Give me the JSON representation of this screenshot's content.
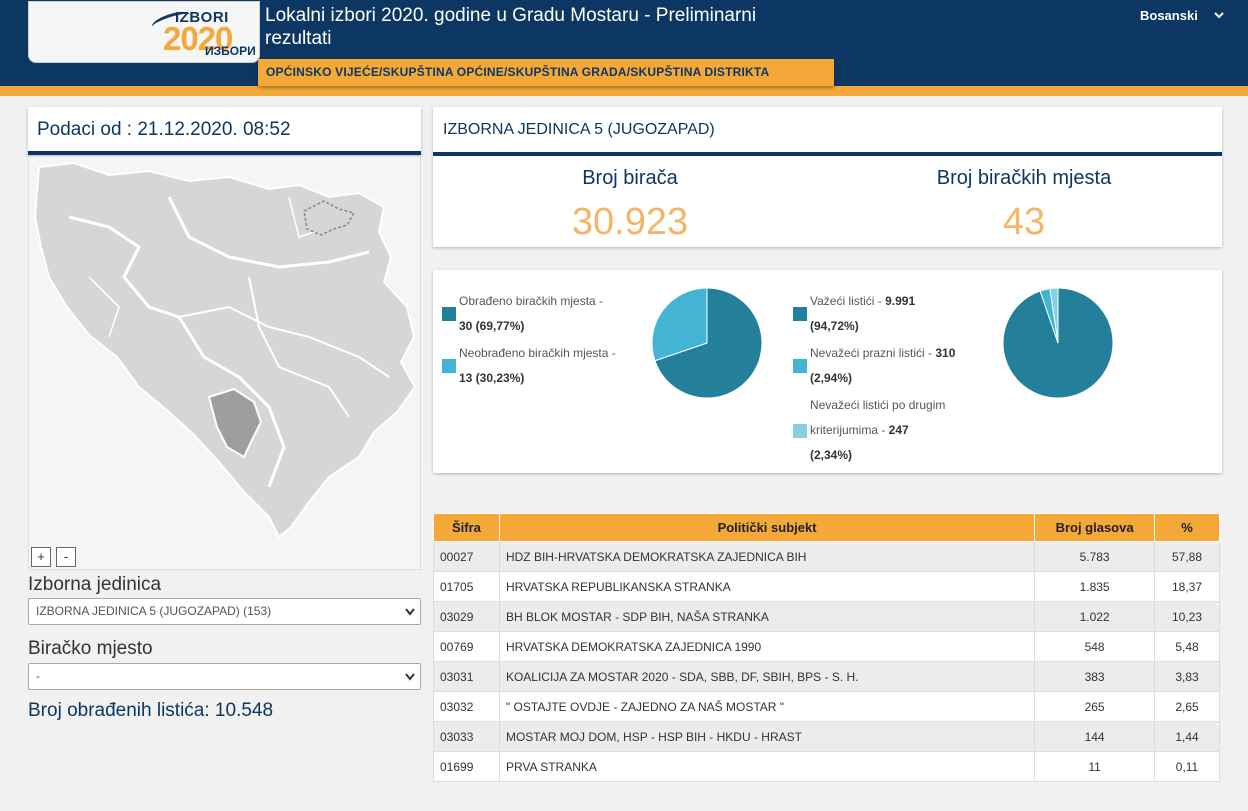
{
  "header": {
    "logo_top": "IZBORI",
    "logo_year": "2020",
    "logo_bottom": "ИЗБОРИ",
    "title": "Lokalni izbori 2020. godine u Gradu Mostaru - Preliminarni rezultati",
    "language": "Bosanski",
    "nav_tab": "OPĆINSKO VIJEĆE/SKUPŠTINA OPĆINE/SKUPŠTINA GRADA/SKUPŠTINA DISTRIKTA"
  },
  "left": {
    "date_label": "Podaci od : 21.12.2020. 08:52",
    "zoom_in": "+",
    "zoom_out": "-",
    "unit_label": "Izborna jedinica",
    "unit_select_value": "IZBORNA JEDINICA 5 (JUGOZAPAD) (153)",
    "station_label": "Biračko mjesto",
    "station_select_value": "-",
    "processed_label": "Broj obrađenih listića: 10.548"
  },
  "unit": {
    "title": "IZBORNA JEDINICA 5 (JUGOZAPAD)",
    "voters_label": "Broj birača",
    "voters_value": "30.923",
    "stations_label": "Broj biračkih mjesta",
    "stations_value": "43"
  },
  "pie1": {
    "legend": [
      {
        "label": "Obrađeno biračkih mjesta -",
        "value": "30 (69,77%)",
        "color": "#247f9b",
        "percent": 69.77
      },
      {
        "label": "Neobrađeno biračkih mjesta -",
        "value": "13 (30,23%)",
        "color": "#44b4d4",
        "percent": 30.23
      }
    ]
  },
  "pie2": {
    "legend": [
      {
        "label": "Važeći listići - ",
        "value": "9.991",
        "pct": "(94,72%)",
        "color": "#247f9b",
        "percent": 94.72
      },
      {
        "label": "Nevažeći prazni listići - ",
        "value": "310",
        "pct": "(2,94%)",
        "color": "#44b4d4",
        "percent": 2.94
      },
      {
        "label": "Nevažeći listići po drugim",
        "label2": "kriterijumima - ",
        "value": "247",
        "pct": "(2,34%)",
        "color": "#86cfe3",
        "percent": 2.34
      }
    ]
  },
  "table": {
    "headers": [
      "Šifra",
      "Politički subjekt",
      "Broj glasova",
      "%"
    ],
    "rows": [
      {
        "code": "00027",
        "party": "HDZ BIH-HRVATSKA DEMOKRATSKA ZAJEDNICA BIH",
        "votes": "5.783",
        "pct": "57,88"
      },
      {
        "code": "01705",
        "party": "HRVATSKA REPUBLIKANSKA STRANKA",
        "votes": "1.835",
        "pct": "18,37"
      },
      {
        "code": "03029",
        "party": "BH BLOK MOSTAR - SDP BIH, NAŠA STRANKA",
        "votes": "1.022",
        "pct": "10,23"
      },
      {
        "code": "00769",
        "party": "HRVATSKA DEMOKRATSKA ZAJEDNICA 1990",
        "votes": "548",
        "pct": "5,48"
      },
      {
        "code": "03031",
        "party": "KOALICIJA ZA MOSTAR 2020 - SDA, SBB, DF, SBIH, BPS - S. H.",
        "votes": "383",
        "pct": "3,83"
      },
      {
        "code": "03032",
        "party": "\" OSTAJTE OVDJE - ZAJEDNO ZA NAŠ MOSTAR \"",
        "votes": "265",
        "pct": "2,65"
      },
      {
        "code": "03033",
        "party": "MOSTAR MOJ DOM, HSP - HSP BIH - HKDU - HRAST",
        "votes": "144",
        "pct": "1,44"
      },
      {
        "code": "01699",
        "party": "PRVA STRANKA",
        "votes": "11",
        "pct": "0,11"
      }
    ]
  }
}
